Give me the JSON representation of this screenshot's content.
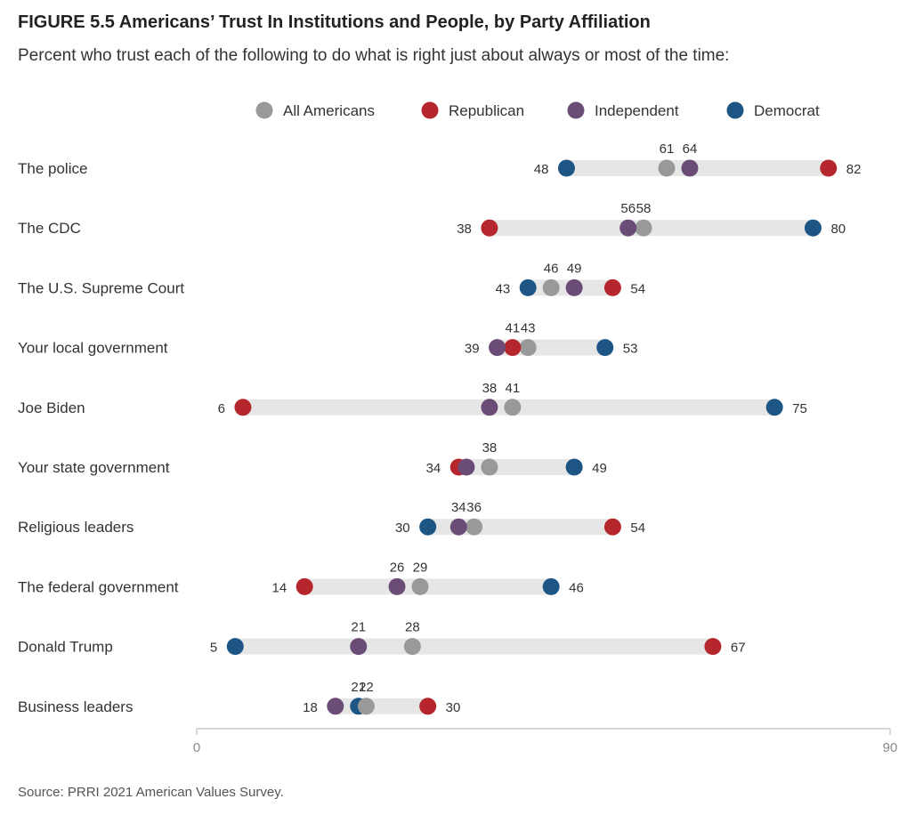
{
  "title": "FIGURE 5.5 Americans’ Trust In Institutions and People, by Party Affiliation",
  "subtitle": "Percent who trust each of the following to do what is right just about always or most of the time:",
  "source": "Source: PRRI 2021 American Values Survey.",
  "colors": {
    "All Americans": "#999999",
    "Republican": "#b5272c",
    "Independent": "#6b4c77",
    "Democrat": "#1d5585",
    "range_bar": "#e6e6e6"
  },
  "chart_data": {
    "type": "dot-range",
    "series": [
      {
        "name": "All Americans"
      },
      {
        "name": "Republican"
      },
      {
        "name": "Independent"
      },
      {
        "name": "Democrat"
      }
    ],
    "categories": [
      "The police",
      "The CDC",
      "The U.S. Supreme Court",
      "Your local government",
      "Joe Biden",
      "Your state government",
      "Religious leaders",
      "The federal government",
      "Donald Trump",
      "Business leaders"
    ],
    "rows": [
      {
        "label": "The police",
        "All Americans": 61,
        "Republican": 82,
        "Independent": 64,
        "Democrat": 48
      },
      {
        "label": "The CDC",
        "All Americans": 58,
        "Republican": 38,
        "Independent": 56,
        "Democrat": 80
      },
      {
        "label": "The U.S. Supreme Court",
        "All Americans": 46,
        "Republican": 54,
        "Independent": 49,
        "Democrat": 43
      },
      {
        "label": "Your local government",
        "All Americans": 43,
        "Republican": 41,
        "Independent": 39,
        "Democrat": 53
      },
      {
        "label": "Joe Biden",
        "All Americans": 41,
        "Republican": 6,
        "Independent": 38,
        "Democrat": 75
      },
      {
        "label": "Your state government",
        "All Americans": 38,
        "Republican": 34,
        "Independent": 35,
        "Democrat": 49
      },
      {
        "label": "Religious leaders",
        "All Americans": 36,
        "Republican": 54,
        "Independent": 34,
        "Democrat": 30
      },
      {
        "label": "The federal government",
        "All Americans": 29,
        "Republican": 14,
        "Independent": 26,
        "Democrat": 46
      },
      {
        "label": "Donald Trump",
        "All Americans": 28,
        "Republican": 67,
        "Independent": 21,
        "Democrat": 5
      },
      {
        "label": "Business leaders",
        "All Americans": 22,
        "Republican": 30,
        "Independent": 18,
        "Democrat": 21
      }
    ],
    "value_labels": [
      {
        "row": 0,
        "value": 48,
        "text": "48",
        "pos": "left"
      },
      {
        "row": 0,
        "value": 61,
        "text": "61",
        "pos": "above"
      },
      {
        "row": 0,
        "value": 64,
        "text": "64",
        "pos": "above"
      },
      {
        "row": 0,
        "value": 82,
        "text": "82",
        "pos": "right"
      },
      {
        "row": 1,
        "value": 38,
        "text": "38",
        "pos": "left"
      },
      {
        "row": 1,
        "value": 56,
        "text": "56",
        "pos": "above"
      },
      {
        "row": 1,
        "value": 58,
        "text": "58",
        "pos": "above"
      },
      {
        "row": 1,
        "value": 80,
        "text": "80",
        "pos": "right"
      },
      {
        "row": 2,
        "value": 43,
        "text": "43",
        "pos": "left"
      },
      {
        "row": 2,
        "value": 46,
        "text": "46",
        "pos": "above"
      },
      {
        "row": 2,
        "value": 49,
        "text": "49",
        "pos": "above"
      },
      {
        "row": 2,
        "value": 54,
        "text": "54",
        "pos": "right"
      },
      {
        "row": 3,
        "value": 39,
        "text": "39",
        "pos": "left"
      },
      {
        "row": 3,
        "value": 41,
        "text": "41",
        "pos": "above"
      },
      {
        "row": 3,
        "value": 43,
        "text": "43",
        "pos": "above"
      },
      {
        "row": 3,
        "value": 53,
        "text": "53",
        "pos": "right"
      },
      {
        "row": 4,
        "value": 6,
        "text": "6",
        "pos": "left"
      },
      {
        "row": 4,
        "value": 38,
        "text": "38",
        "pos": "above"
      },
      {
        "row": 4,
        "value": 41,
        "text": "41",
        "pos": "above"
      },
      {
        "row": 4,
        "value": 75,
        "text": "75",
        "pos": "right"
      },
      {
        "row": 5,
        "value": 34,
        "text": "34",
        "pos": "left"
      },
      {
        "row": 5,
        "value": 38,
        "text": "38",
        "pos": "above"
      },
      {
        "row": 5,
        "value": 49,
        "text": "49",
        "pos": "right"
      },
      {
        "row": 6,
        "value": 30,
        "text": "30",
        "pos": "left"
      },
      {
        "row": 6,
        "value": 34,
        "text": "34",
        "pos": "above"
      },
      {
        "row": 6,
        "value": 36,
        "text": "36",
        "pos": "above"
      },
      {
        "row": 6,
        "value": 54,
        "text": "54",
        "pos": "right"
      },
      {
        "row": 7,
        "value": 14,
        "text": "14",
        "pos": "left"
      },
      {
        "row": 7,
        "value": 26,
        "text": "26",
        "pos": "above"
      },
      {
        "row": 7,
        "value": 29,
        "text": "29",
        "pos": "above"
      },
      {
        "row": 7,
        "value": 46,
        "text": "46",
        "pos": "right"
      },
      {
        "row": 8,
        "value": 5,
        "text": "5",
        "pos": "left"
      },
      {
        "row": 8,
        "value": 21,
        "text": "21",
        "pos": "above"
      },
      {
        "row": 8,
        "value": 28,
        "text": "28",
        "pos": "above"
      },
      {
        "row": 8,
        "value": 67,
        "text": "67",
        "pos": "right"
      },
      {
        "row": 9,
        "value": 18,
        "text": "18",
        "pos": "left"
      },
      {
        "row": 9,
        "value": 21,
        "text": "21",
        "pos": "above"
      },
      {
        "row": 9,
        "value": 22,
        "text": "22",
        "pos": "above"
      },
      {
        "row": 9,
        "value": 30,
        "text": "30",
        "pos": "right"
      }
    ],
    "xlim": [
      0,
      90
    ],
    "x_ticks": [
      "0",
      "90"
    ],
    "legend_position": "top-center",
    "grid": false
  }
}
